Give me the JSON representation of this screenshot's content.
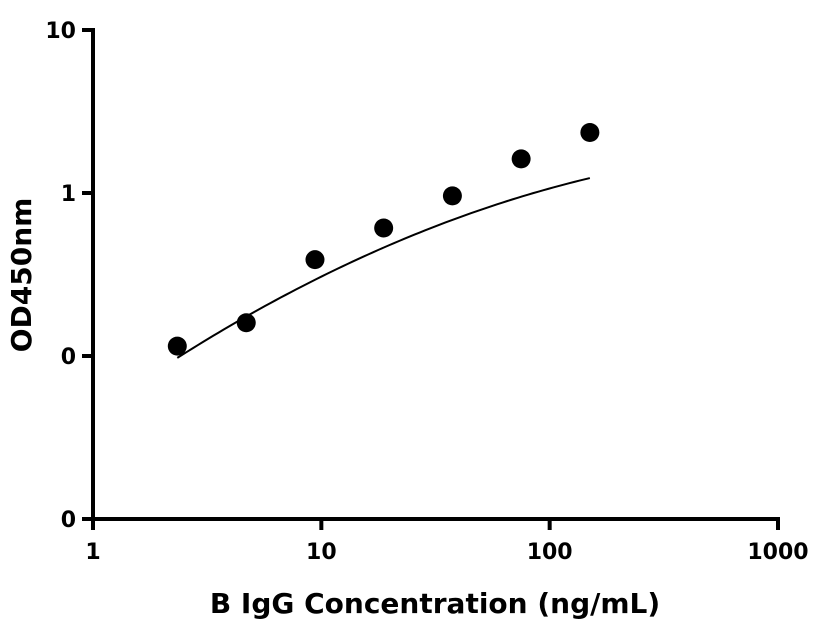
{
  "chart_data": {
    "type": "scatter",
    "title": "",
    "xlabel": "B IgG Concentration (ng/mL)",
    "ylabel": "OD450nm",
    "x_scale": "log",
    "y_scale": "log",
    "xlim": [
      1,
      1000
    ],
    "ylim": [
      0.01,
      10
    ],
    "x_ticks": [
      {
        "value": 1,
        "label": "1"
      },
      {
        "value": 10,
        "label": "10"
      },
      {
        "value": 100,
        "label": "100"
      },
      {
        "value": 1000,
        "label": "1000"
      }
    ],
    "y_ticks": [
      {
        "value": 0.01,
        "label": "0"
      },
      {
        "value": 0.1,
        "label": "0"
      },
      {
        "value": 1,
        "label": "1"
      },
      {
        "value": 10,
        "label": "10"
      }
    ],
    "grid": false,
    "marker_color": "#000000",
    "points": [
      {
        "x": 2.34,
        "y": 0.115
      },
      {
        "x": 4.69,
        "y": 0.16
      },
      {
        "x": 9.38,
        "y": 0.39
      },
      {
        "x": 18.75,
        "y": 0.61
      },
      {
        "x": 37.5,
        "y": 0.96
      },
      {
        "x": 75,
        "y": 1.62
      },
      {
        "x": 150,
        "y": 2.35
      }
    ],
    "fit_curve": {
      "x_range": [
        2.34,
        150
      ],
      "intercept_log": -1.36,
      "slope_log": 1.0,
      "curvature_log": -0.153
    }
  }
}
